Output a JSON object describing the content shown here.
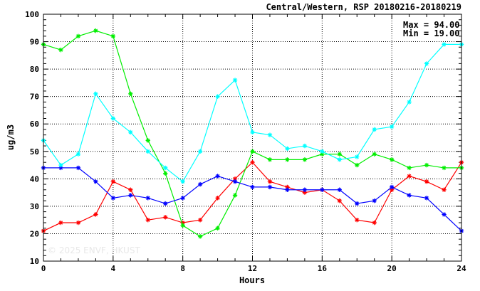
{
  "chart_data": {
    "type": "line",
    "title": "Central/Western, RSP 20180216-20180219",
    "xlabel": "Hours",
    "ylabel": "ug/m3",
    "xlim": [
      0,
      24
    ],
    "ylim": [
      10,
      100
    ],
    "xticks": [
      0,
      4,
      8,
      12,
      16,
      20,
      24
    ],
    "yticks": [
      10,
      20,
      30,
      40,
      50,
      60,
      70,
      80,
      90,
      100
    ],
    "grid": true,
    "stats": {
      "max": "Max = 94.00",
      "min": "Min = 19.00"
    },
    "watermark": "© 2025 ENVF, HKUST",
    "x": [
      0,
      1,
      2,
      3,
      4,
      5,
      6,
      7,
      8,
      9,
      10,
      11,
      12,
      13,
      14,
      15,
      16,
      17,
      18,
      19,
      20,
      21,
      22,
      23,
      24
    ],
    "series": [
      {
        "color": "#ff0000",
        "values": [
          21,
          24,
          24,
          27,
          39,
          36,
          25,
          26,
          24,
          25,
          33,
          40,
          46,
          39,
          37,
          35,
          36,
          32,
          25,
          24,
          36,
          41,
          39,
          36,
          46
        ]
      },
      {
        "color": "#00ee00",
        "values": [
          89,
          87,
          92,
          94,
          92,
          71,
          54,
          42,
          23,
          19,
          22,
          34,
          50,
          47,
          47,
          47,
          49,
          49,
          45,
          49,
          47,
          44,
          45,
          44,
          44
        ]
      },
      {
        "color": "#0000ff",
        "values": [
          44,
          44,
          44,
          39,
          33,
          34,
          33,
          31,
          33,
          38,
          41,
          39,
          37,
          37,
          36,
          36,
          36,
          36,
          31,
          32,
          37,
          34,
          33,
          27,
          21
        ]
      },
      {
        "color": "#00ffff",
        "values": [
          54,
          45,
          49,
          71,
          62,
          57,
          50,
          44,
          39,
          50,
          70,
          76,
          57,
          56,
          51,
          52,
          50,
          47,
          48,
          58,
          59,
          68,
          82,
          89,
          89
        ]
      }
    ]
  }
}
